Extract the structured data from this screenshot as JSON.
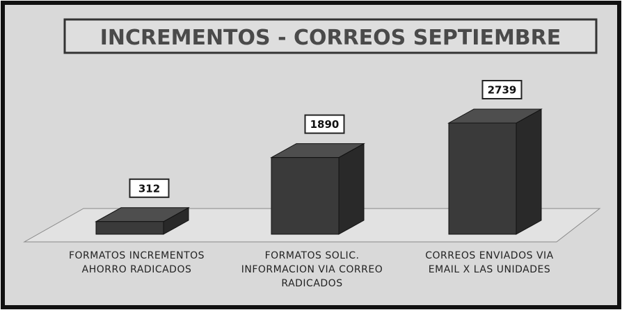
{
  "chart_data": {
    "type": "bar3d",
    "title": "INCREMENTOS - CORREOS SEPTIEMBRE",
    "categories": [
      "FORMATOS INCREMENTOS AHORRO RADICADOS",
      "FORMATOS SOLIC. INFORMACION VIA CORREO RADICADOS",
      "CORREOS ENVIADOS VIA EMAIL X LAS UNIDADES"
    ],
    "values": [
      312,
      1890,
      2739
    ],
    "color": "#3a3a3a"
  }
}
